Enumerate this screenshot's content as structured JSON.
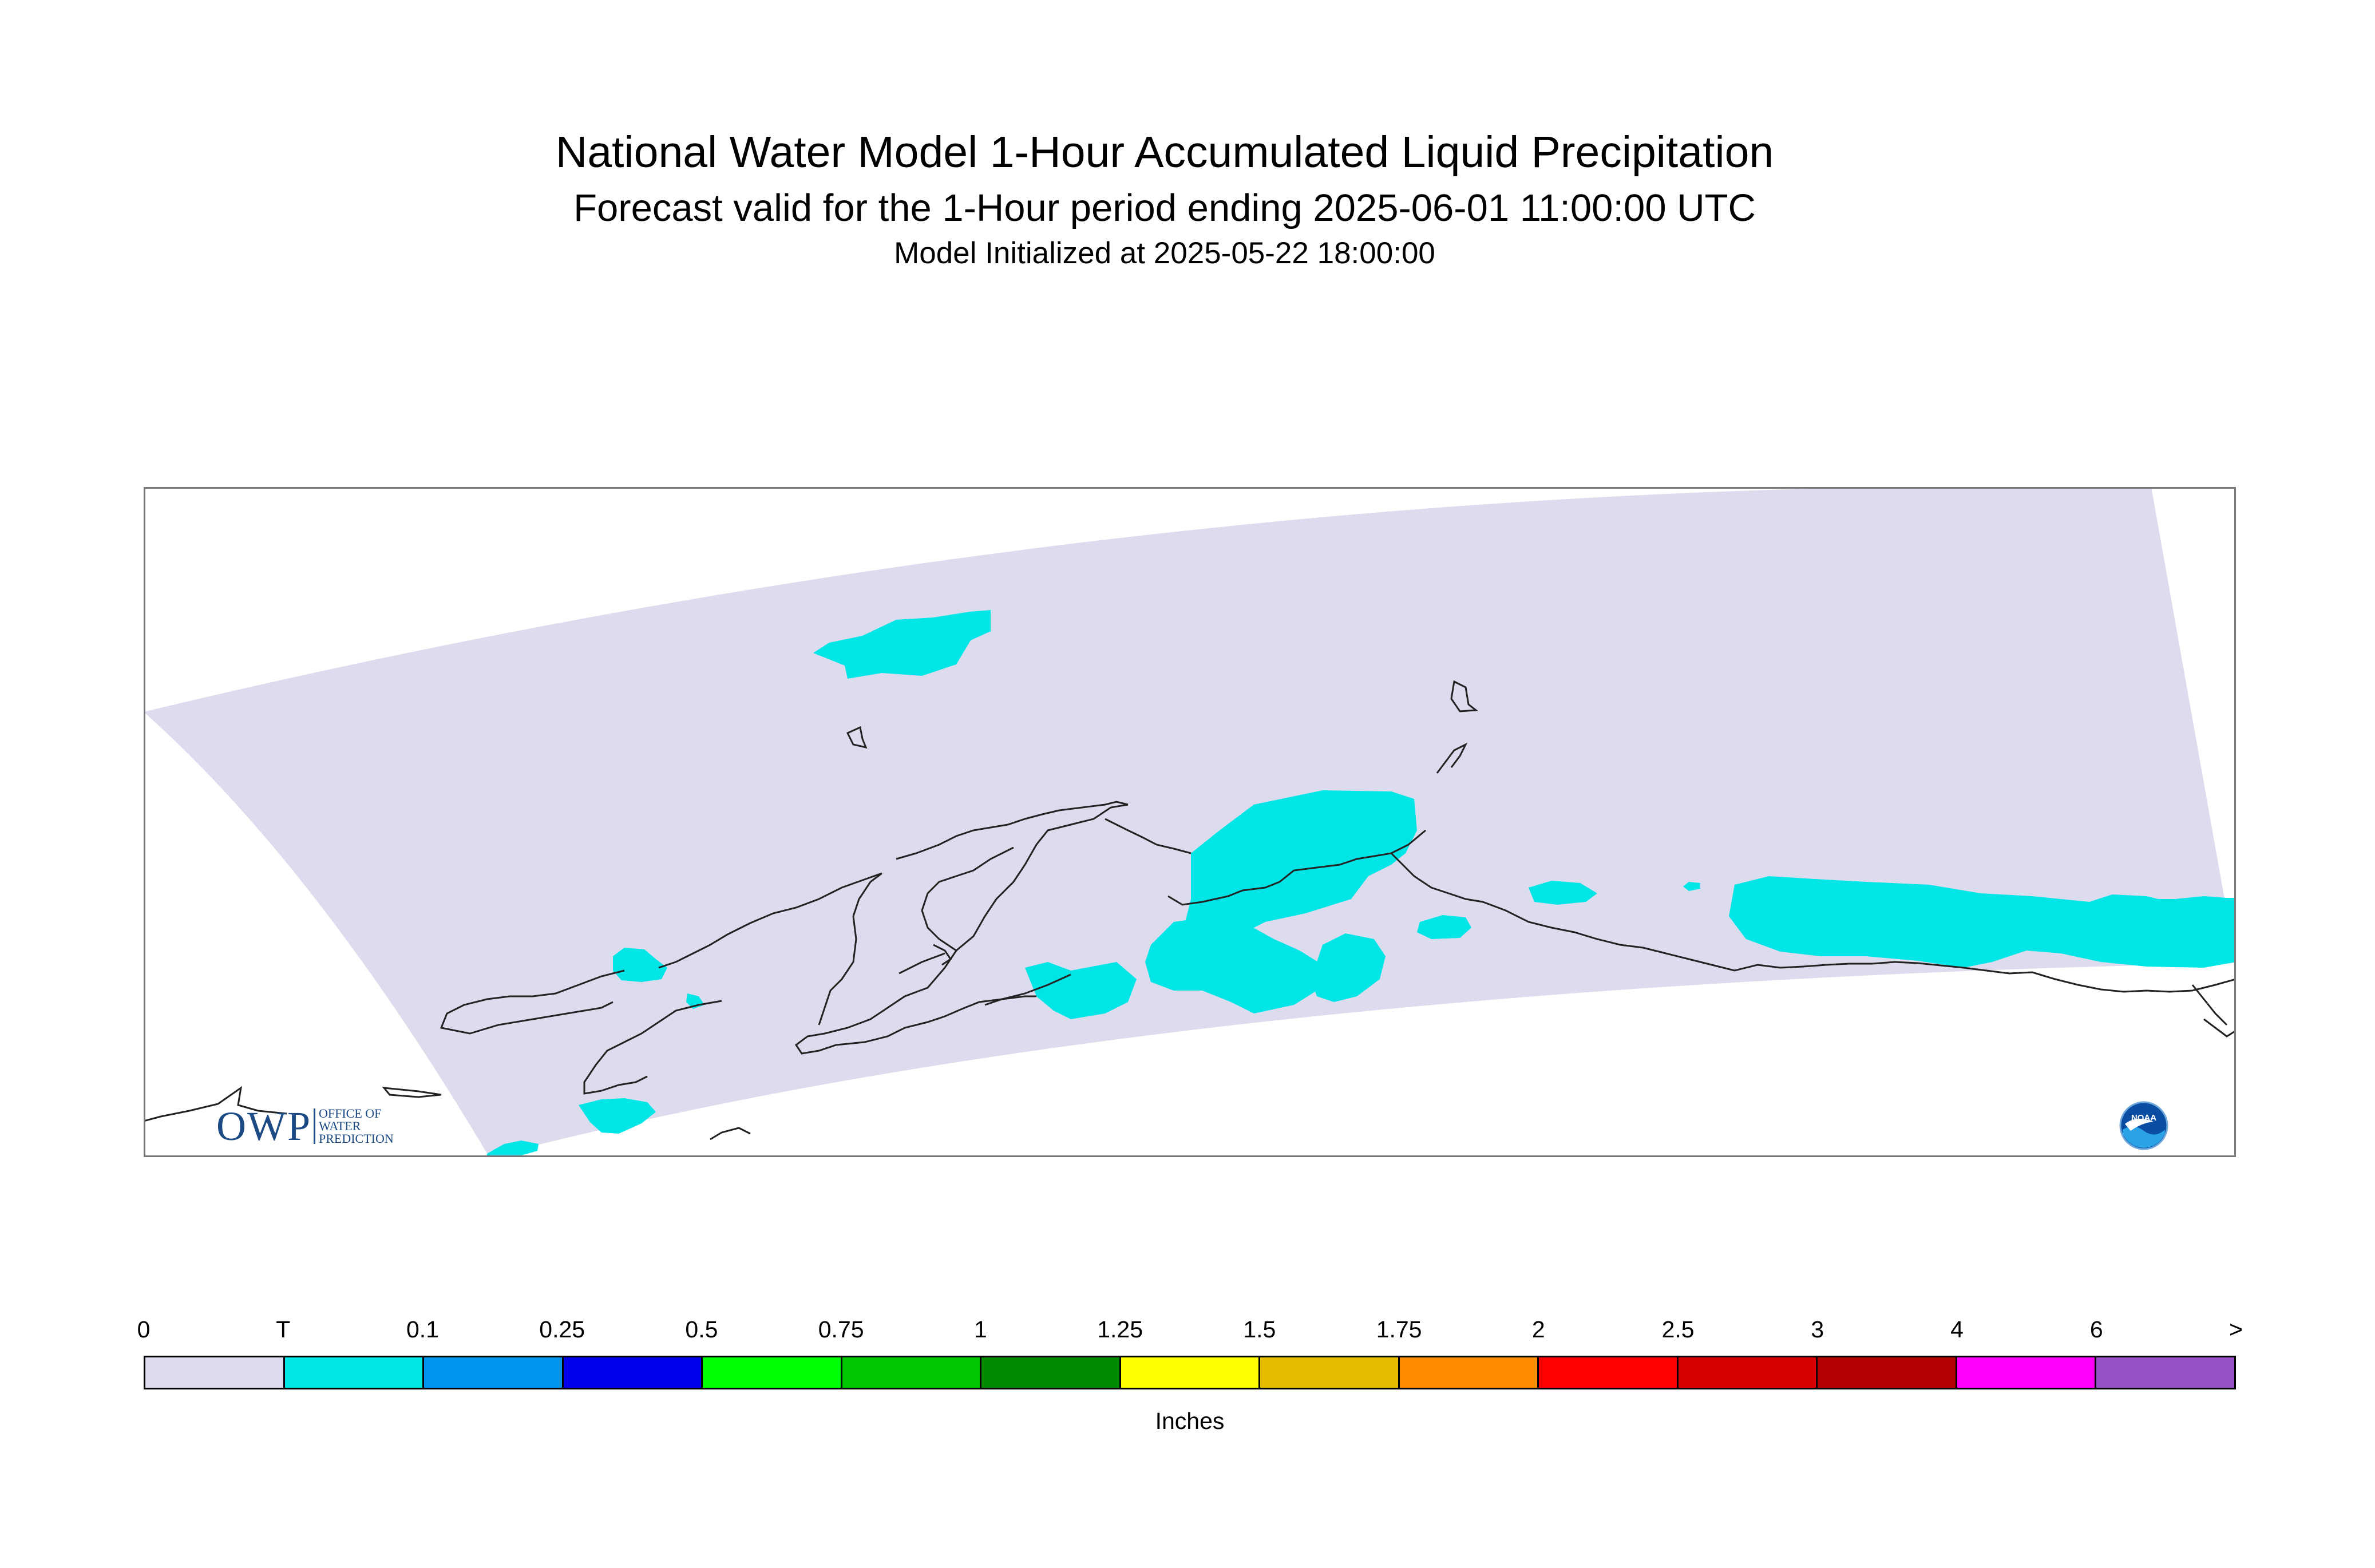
{
  "title": {
    "main": "National Water Model 1-Hour Accumulated Liquid Precipitation",
    "sub": "Forecast valid for the 1-Hour period ending 2025-06-01 11:00:00 UTC",
    "init": "Model Initialized at 2025-05-22 18:00:00"
  },
  "map": {
    "domain_color": "#dcdcee",
    "trace_color": "#00e5e5",
    "coastline_color": "#222222"
  },
  "logos": {
    "owp": {
      "letters": "OWP",
      "line1": "OFFICE OF",
      "line2": "WATER",
      "line3": "PREDICTION"
    },
    "noaa": {
      "text": "NOAA"
    }
  },
  "legend": {
    "units": "Inches",
    "tick_labels": [
      "0",
      "T",
      "0.1",
      "0.25",
      "0.5",
      "0.75",
      "1",
      "1.25",
      "1.5",
      "1.75",
      "2",
      "2.5",
      "3",
      "4",
      "6",
      ">"
    ],
    "colors": [
      "#dcdcee",
      "#00e5e5",
      "#0096ee",
      "#0000ee",
      "#00ff00",
      "#00c800",
      "#008c00",
      "#ffff00",
      "#e6be00",
      "#ff8c00",
      "#ff0000",
      "#d70000",
      "#b40000",
      "#ff00ff",
      "#9650c8"
    ]
  }
}
